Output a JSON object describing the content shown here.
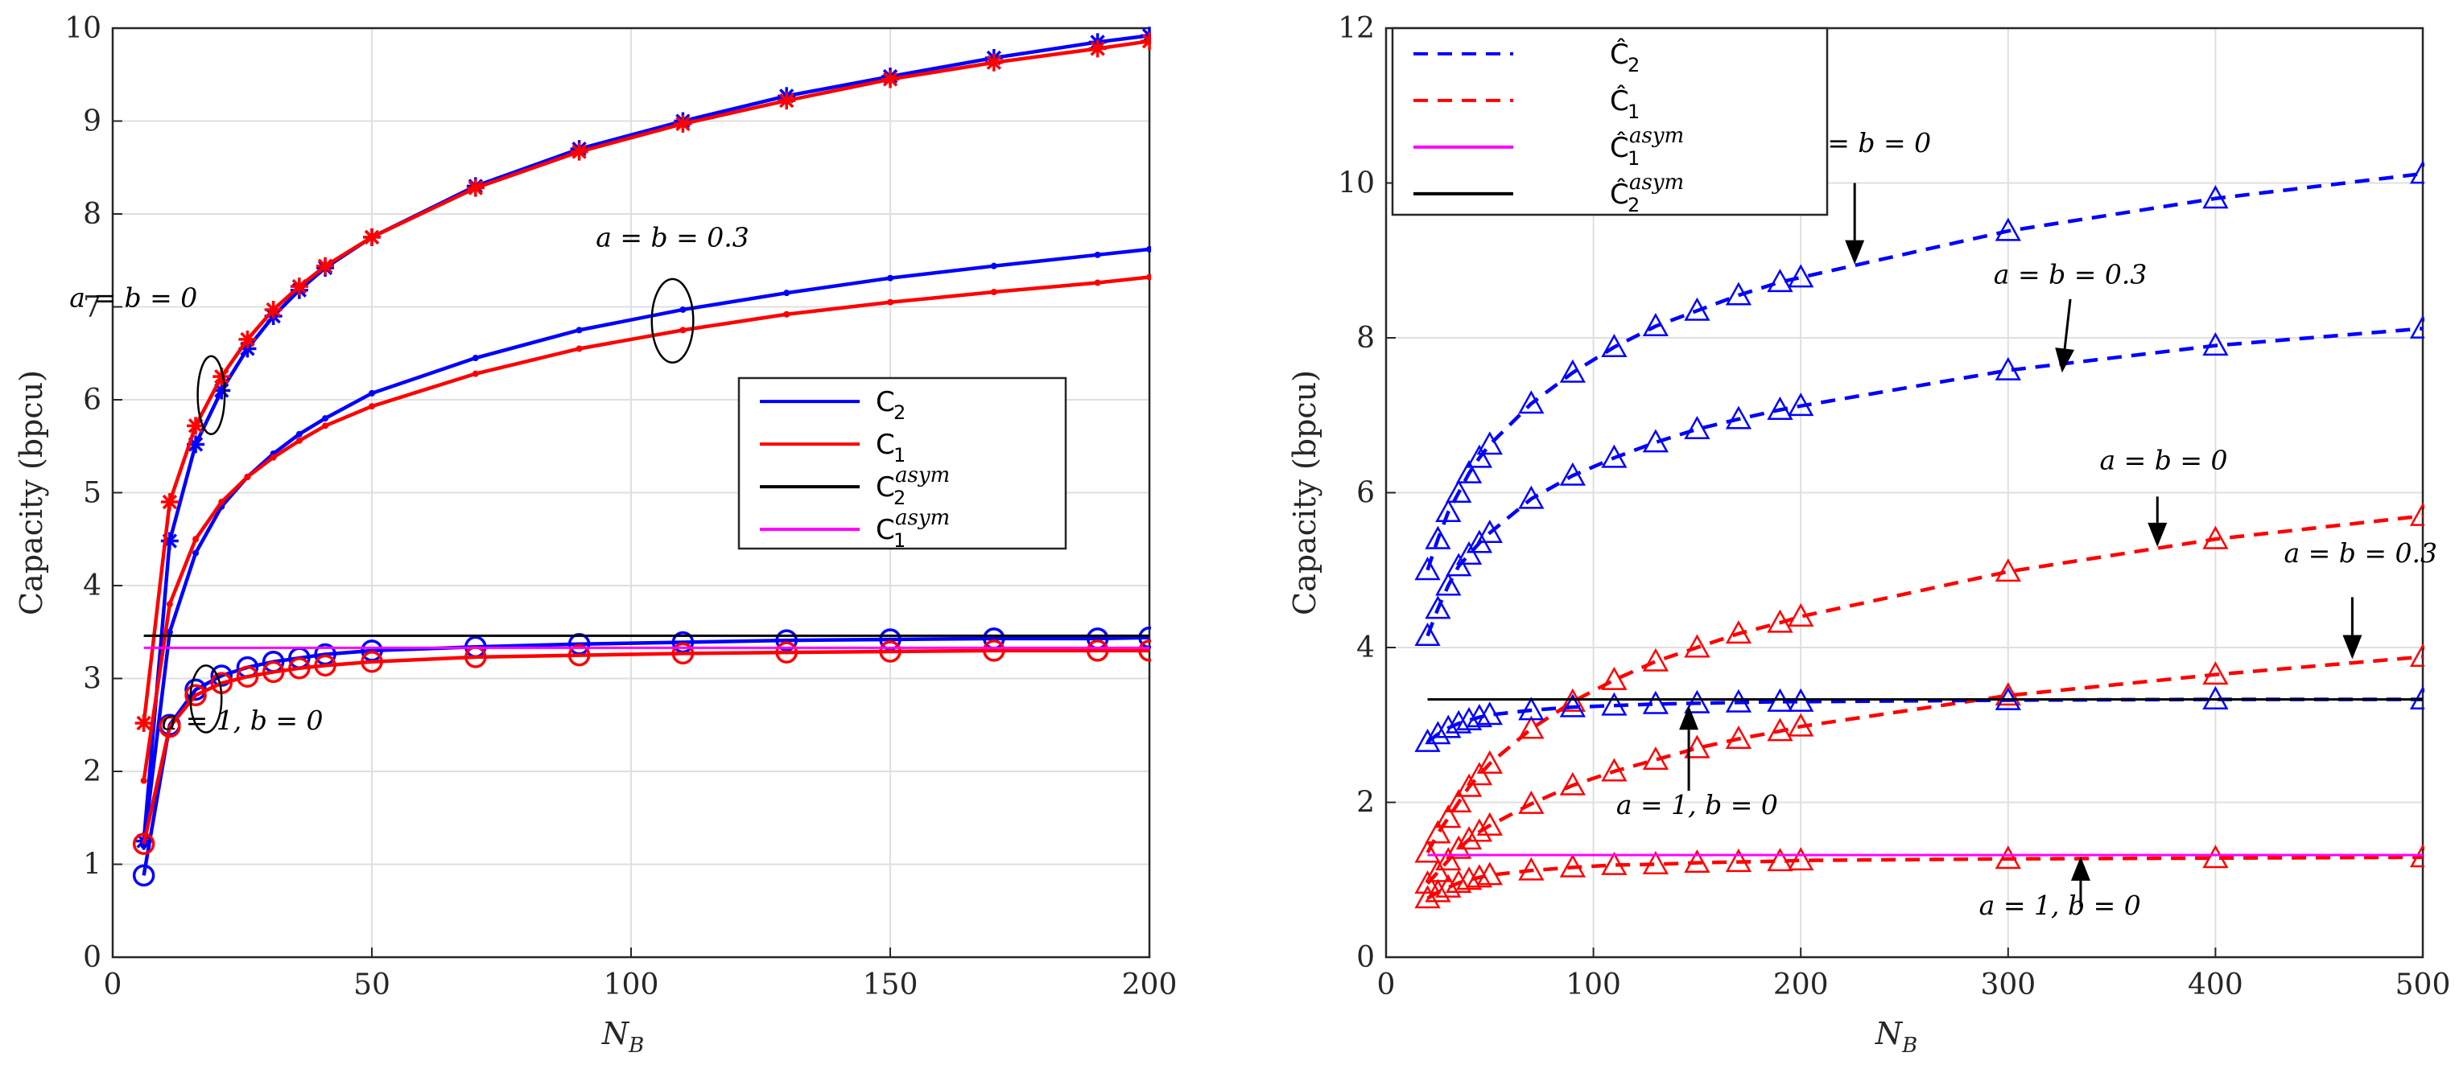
{
  "chart_data": [
    {
      "type": "line",
      "id": "left",
      "title": "",
      "xlabel": "N",
      "xlabel_sub": "B",
      "ylabel": "Capacity (bpcu)",
      "xlim": [
        0,
        200
      ],
      "ylim": [
        0,
        10
      ],
      "xticks": [
        0,
        50,
        100,
        150,
        200
      ],
      "yticks": [
        0,
        1,
        2,
        3,
        4,
        5,
        6,
        7,
        8,
        9,
        10
      ],
      "grid": true,
      "legend_position": "center-right",
      "legend": [
        {
          "main": "C",
          "sub": "2",
          "sup": "",
          "color": "#0000ff"
        },
        {
          "main": "C",
          "sub": "1",
          "sup": "",
          "color": "#ff0000"
        },
        {
          "main": "C",
          "sub": "2",
          "sup": "asym",
          "color": "#000000"
        },
        {
          "main": "C",
          "sub": "1",
          "sup": "asym",
          "color": "#ff00ff"
        }
      ],
      "series": [
        {
          "name": "C2, a=b=0",
          "color": "#0000ff",
          "marker": "star",
          "dash": "",
          "x": [
            6,
            11,
            16,
            21,
            26,
            31,
            36,
            41,
            50,
            70,
            90,
            110,
            130,
            150,
            170,
            190,
            200
          ],
          "y": [
            1.25,
            4.48,
            5.52,
            6.1,
            6.55,
            6.9,
            7.18,
            7.42,
            7.75,
            8.3,
            8.7,
            9.0,
            9.27,
            9.48,
            9.68,
            9.85,
            9.92
          ]
        },
        {
          "name": "C1, a=b=0",
          "color": "#ff0000",
          "marker": "star",
          "dash": "",
          "x": [
            6,
            11,
            16,
            21,
            26,
            31,
            36,
            41,
            50,
            70,
            90,
            110,
            130,
            150,
            170,
            190,
            200
          ],
          "y": [
            2.52,
            4.9,
            5.72,
            6.25,
            6.65,
            6.97,
            7.22,
            7.44,
            7.75,
            8.28,
            8.67,
            8.97,
            9.22,
            9.45,
            9.63,
            9.78,
            9.86
          ]
        },
        {
          "name": "C2, a=b=0.3",
          "color": "#0000ff",
          "marker": "dot",
          "dash": "",
          "x": [
            6,
            11,
            16,
            21,
            26,
            31,
            36,
            41,
            50,
            70,
            90,
            110,
            130,
            150,
            170,
            190,
            200
          ],
          "y": [
            1.2,
            3.5,
            4.35,
            4.85,
            5.17,
            5.42,
            5.63,
            5.8,
            6.07,
            6.45,
            6.75,
            6.97,
            7.15,
            7.31,
            7.44,
            7.56,
            7.62
          ]
        },
        {
          "name": "C1, a=b=0.3",
          "color": "#ff0000",
          "marker": "dot",
          "dash": "",
          "x": [
            6,
            11,
            16,
            21,
            26,
            31,
            36,
            41,
            50,
            70,
            90,
            110,
            130,
            150,
            170,
            190,
            200
          ],
          "y": [
            1.9,
            3.8,
            4.5,
            4.9,
            5.17,
            5.38,
            5.56,
            5.72,
            5.93,
            6.28,
            6.55,
            6.75,
            6.92,
            7.05,
            7.16,
            7.26,
            7.32
          ]
        },
        {
          "name": "C2, a=1,b=0",
          "color": "#0000ff",
          "marker": "circle",
          "dash": "",
          "x": [
            6,
            11,
            16,
            21,
            26,
            31,
            36,
            41,
            50,
            70,
            90,
            110,
            130,
            150,
            170,
            190,
            200
          ],
          "y": [
            0.88,
            2.5,
            2.88,
            3.03,
            3.12,
            3.18,
            3.22,
            3.26,
            3.3,
            3.34,
            3.37,
            3.39,
            3.41,
            3.42,
            3.43,
            3.43,
            3.44
          ]
        },
        {
          "name": "C1, a=1,b=0",
          "color": "#ff0000",
          "marker": "circle",
          "dash": "",
          "x": [
            6,
            11,
            16,
            21,
            26,
            31,
            36,
            41,
            50,
            70,
            90,
            110,
            130,
            150,
            170,
            190,
            200
          ],
          "y": [
            1.22,
            2.48,
            2.82,
            2.95,
            3.02,
            3.07,
            3.11,
            3.14,
            3.18,
            3.23,
            3.25,
            3.27,
            3.28,
            3.29,
            3.3,
            3.3,
            3.3
          ]
        },
        {
          "name": "C2 asym",
          "color": "#000000",
          "marker": "none",
          "dash": "",
          "x": [
            6,
            200
          ],
          "y": [
            3.46,
            3.46
          ]
        },
        {
          "name": "C1 asym",
          "color": "#ff00ff",
          "marker": "none",
          "dash": "",
          "x": [
            6,
            200
          ],
          "y": [
            3.33,
            3.33
          ]
        }
      ],
      "annotations": [
        {
          "text": "a = b = 0",
          "x": 4,
          "y": 7.0
        },
        {
          "text": "a = b = 0.3",
          "x": 108,
          "y": 7.65
        },
        {
          "text": "a = 1, b = 0",
          "x": 25,
          "y": 2.45
        }
      ],
      "ellipses": [
        {
          "cx": 19,
          "cy": 6.05,
          "rx": 2.6,
          "ry": 0.42
        },
        {
          "cx": 108,
          "cy": 6.85,
          "rx": 4.0,
          "ry": 0.45
        },
        {
          "cx": 18,
          "cy": 2.78,
          "rx": 3.0,
          "ry": 0.36
        }
      ]
    },
    {
      "type": "line",
      "id": "right",
      "title": "",
      "xlabel": "N",
      "xlabel_sub": "B",
      "ylabel": "Capacity (bpcu)",
      "xlim": [
        0,
        500
      ],
      "ylim": [
        0,
        12
      ],
      "xticks": [
        0,
        100,
        200,
        300,
        400,
        500
      ],
      "yticks": [
        0,
        2,
        4,
        6,
        8,
        10,
        12
      ],
      "grid": true,
      "legend_position": "top-left",
      "legend": [
        {
          "main": "Ĉ",
          "sub": "2",
          "sup": "",
          "color": "#0000ff",
          "dash": "dashed"
        },
        {
          "main": "Ĉ",
          "sub": "1",
          "sup": "",
          "color": "#ff0000",
          "dash": "dashed"
        },
        {
          "main": "Ĉ",
          "sub": "1",
          "sup": "asym",
          "color": "#ff00ff",
          "dash": "solid"
        },
        {
          "main": "Ĉ",
          "sub": "2",
          "sup": "asym",
          "color": "#000000",
          "dash": "solid"
        }
      ],
      "series": [
        {
          "name": "Ĉ2, a=b=0",
          "color": "#0000ff",
          "marker": "triangle",
          "dash": "dashed",
          "x": [
            20,
            25,
            30,
            35,
            40,
            45,
            50,
            70,
            90,
            110,
            130,
            150,
            170,
            190,
            200,
            300,
            400,
            500
          ],
          "y": [
            5.0,
            5.4,
            5.75,
            6.0,
            6.25,
            6.45,
            6.62,
            7.15,
            7.55,
            7.88,
            8.15,
            8.35,
            8.55,
            8.72,
            8.78,
            9.38,
            9.8,
            10.12
          ]
        },
        {
          "name": "Ĉ2, a=b=0.3",
          "color": "#0000ff",
          "marker": "triangle",
          "dash": "dashed",
          "x": [
            20,
            25,
            30,
            35,
            40,
            45,
            50,
            70,
            90,
            110,
            130,
            150,
            170,
            190,
            200,
            300,
            400,
            500
          ],
          "y": [
            4.15,
            4.5,
            4.8,
            5.05,
            5.2,
            5.35,
            5.48,
            5.92,
            6.22,
            6.45,
            6.65,
            6.82,
            6.95,
            7.07,
            7.12,
            7.58,
            7.9,
            8.12
          ]
        },
        {
          "name": "Ĉ1, a=b=0",
          "color": "#ff0000",
          "marker": "triangle",
          "dash": "dashed",
          "x": [
            20,
            25,
            30,
            35,
            40,
            45,
            50,
            70,
            90,
            110,
            130,
            150,
            170,
            190,
            200,
            300,
            400,
            500
          ],
          "y": [
            1.35,
            1.6,
            1.8,
            2.0,
            2.2,
            2.35,
            2.5,
            2.95,
            3.3,
            3.58,
            3.82,
            4.0,
            4.18,
            4.32,
            4.4,
            4.98,
            5.4,
            5.7
          ]
        },
        {
          "name": "Ĉ1, a=b=0.3",
          "color": "#ff0000",
          "marker": "triangle",
          "dash": "dashed",
          "x": [
            20,
            25,
            30,
            35,
            40,
            45,
            50,
            70,
            90,
            110,
            130,
            150,
            170,
            190,
            200,
            300,
            400,
            500
          ],
          "y": [
            0.95,
            1.1,
            1.25,
            1.4,
            1.52,
            1.62,
            1.7,
            1.98,
            2.22,
            2.4,
            2.55,
            2.7,
            2.82,
            2.92,
            2.98,
            3.38,
            3.65,
            3.88
          ]
        },
        {
          "name": "Ĉ2, a=1,b=0",
          "color": "#0000ff",
          "marker": "triangle",
          "dash": "dashed",
          "x": [
            20,
            25,
            30,
            35,
            40,
            45,
            50,
            70,
            90,
            110,
            130,
            150,
            170,
            190,
            200,
            300,
            400,
            500
          ],
          "y": [
            2.78,
            2.88,
            2.96,
            3.02,
            3.06,
            3.1,
            3.13,
            3.19,
            3.23,
            3.25,
            3.27,
            3.28,
            3.29,
            3.3,
            3.3,
            3.32,
            3.33,
            3.33
          ]
        },
        {
          "name": "Ĉ1, a=1,b=0",
          "color": "#ff0000",
          "marker": "triangle",
          "dash": "dashed",
          "x": [
            20,
            25,
            30,
            35,
            40,
            45,
            50,
            70,
            90,
            110,
            130,
            150,
            170,
            190,
            200,
            300,
            400,
            500
          ],
          "y": [
            0.76,
            0.84,
            0.9,
            0.96,
            1.0,
            1.03,
            1.06,
            1.12,
            1.16,
            1.19,
            1.2,
            1.22,
            1.23,
            1.24,
            1.25,
            1.27,
            1.28,
            1.29
          ]
        },
        {
          "name": "Ĉ2 asym",
          "color": "#000000",
          "marker": "none",
          "dash": "",
          "x": [
            20,
            500
          ],
          "y": [
            3.33,
            3.33
          ]
        },
        {
          "name": "Ĉ1 asym",
          "color": "#ff00ff",
          "marker": "none",
          "dash": "",
          "x": [
            20,
            500
          ],
          "y": [
            1.32,
            1.32
          ]
        }
      ],
      "annotations": [
        {
          "text": "a = b = 0",
          "x": 232,
          "y": 10.4
        },
        {
          "text": "a = b = 0.3",
          "x": 330,
          "y": 8.7
        },
        {
          "text": "a = b = 0",
          "x": 375,
          "y": 6.3
        },
        {
          "text": "a = b = 0.3",
          "x": 470,
          "y": 5.1
        },
        {
          "text": "a = 1, b = 0",
          "x": 150,
          "y": 1.85
        },
        {
          "text": "a = 1, b = 0",
          "x": 325,
          "y": 0.55
        }
      ],
      "arrows": [
        {
          "x1": 226,
          "y1": 10.0,
          "x2": 226,
          "y2": 8.95
        },
        {
          "x1": 330,
          "y1": 8.5,
          "x2": 326,
          "y2": 7.55
        },
        {
          "x1": 372,
          "y1": 5.95,
          "x2": 372,
          "y2": 5.3
        },
        {
          "x1": 466,
          "y1": 4.65,
          "x2": 466,
          "y2": 3.85
        },
        {
          "x1": 146,
          "y1": 2.15,
          "x2": 146,
          "y2": 3.25
        },
        {
          "x1": 335,
          "y1": 0.65,
          "x2": 335,
          "y2": 1.3
        }
      ]
    }
  ]
}
